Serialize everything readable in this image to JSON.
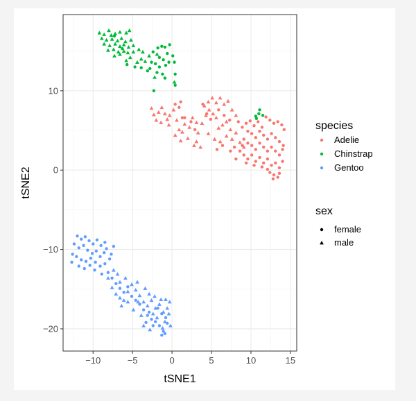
{
  "chart_data": {
    "type": "scatter",
    "xlabel": "tSNE1",
    "ylabel": "tSNE2",
    "xlim": [
      -13.8,
      15.8
    ],
    "ylim": [
      -22.8,
      19.6
    ],
    "xticks": [
      -10,
      -5,
      0,
      5,
      10,
      15
    ],
    "yticks": [
      -20,
      -10,
      0,
      10
    ],
    "xtick_labels": [
      "−10",
      "−5",
      "0",
      "5",
      "10",
      "15"
    ],
    "ytick_labels": [
      "−20",
      "−10",
      "0",
      "10"
    ],
    "grid": true,
    "colors": {
      "Adelie": "#F8766D",
      "Chinstrap": "#00BA38",
      "Gentoo": "#619CFF"
    },
    "legend": {
      "color_title": "species",
      "color_items": [
        "Adelie",
        "Chinstrap",
        "Gentoo"
      ],
      "shape_title": "sex",
      "shape_items": [
        "female",
        "male"
      ]
    },
    "series": [
      {
        "species": "Chinstrap",
        "sex": "male",
        "points": [
          [
            -9.2,
            17.3
          ],
          [
            -8.6,
            17.1
          ],
          [
            -8.0,
            17.6
          ],
          [
            -7.7,
            17.0
          ],
          [
            -7.2,
            17.2
          ],
          [
            -6.6,
            17.4
          ],
          [
            -5.8,
            17.3
          ],
          [
            -5.4,
            17.6
          ],
          [
            -8.9,
            16.6
          ],
          [
            -8.3,
            16.4
          ],
          [
            -7.6,
            16.5
          ],
          [
            -6.9,
            16.3
          ],
          [
            -6.4,
            16.6
          ],
          [
            -5.9,
            16.2
          ],
          [
            -5.2,
            16.4
          ],
          [
            -8.6,
            15.9
          ],
          [
            -7.9,
            15.7
          ],
          [
            -7.2,
            15.9
          ],
          [
            -6.6,
            15.6
          ],
          [
            -6.1,
            15.8
          ],
          [
            -5.5,
            15.5
          ],
          [
            -4.9,
            15.7
          ],
          [
            -8.1,
            15.1
          ],
          [
            -7.4,
            15.2
          ],
          [
            -6.8,
            14.9
          ],
          [
            -6.1,
            15.0
          ],
          [
            -5.6,
            14.8
          ],
          [
            -4.9,
            14.9
          ],
          [
            -4.2,
            15.2
          ],
          [
            -3.7,
            14.9
          ],
          [
            -7.3,
            14.4
          ],
          [
            -6.6,
            14.6
          ],
          [
            -5.3,
            14.2
          ],
          [
            -3.9,
            14.0
          ],
          [
            -5.8,
            13.8
          ],
          [
            -4.4,
            13.6
          ],
          [
            -2.9,
            14.4
          ],
          [
            -3.4,
            13.7
          ],
          [
            -1.9,
            14.6
          ],
          [
            -2.2,
            11.7
          ],
          [
            0.3,
            11.1
          ]
        ]
      },
      {
        "species": "Chinstrap",
        "sex": "female",
        "points": [
          [
            -7.3,
            16.9
          ],
          [
            -6.3,
            15.3
          ],
          [
            -5.7,
            13.3
          ],
          [
            -4.7,
            13.0
          ],
          [
            -3.9,
            12.9
          ],
          [
            -2.6,
            13.6
          ],
          [
            -3.1,
            12.5
          ],
          [
            -2.4,
            14.9
          ],
          [
            -1.8,
            15.4
          ],
          [
            -1.3,
            15.6
          ],
          [
            -0.9,
            15.5
          ],
          [
            -0.3,
            15.8
          ],
          [
            -0.6,
            14.7
          ],
          [
            -1.6,
            14.2
          ],
          [
            -1.1,
            13.9
          ],
          [
            -2.1,
            13.4
          ],
          [
            -1.6,
            13.0
          ],
          [
            -0.8,
            13.2
          ],
          [
            -0.4,
            13.6
          ],
          [
            -2.8,
            12.8
          ],
          [
            -1.9,
            12.3
          ],
          [
            -1.2,
            12.1
          ],
          [
            -0.9,
            11.6
          ],
          [
            0.1,
            14.4
          ],
          [
            0.3,
            13.6
          ],
          [
            0.4,
            12.1
          ],
          [
            0.4,
            10.7
          ],
          [
            -2.3,
            10.0
          ],
          [
            10.6,
            6.8
          ],
          [
            11.1,
            7.6
          ],
          [
            11.5,
            6.9
          ],
          [
            10.7,
            6.5
          ],
          [
            11.0,
            7.1
          ]
        ]
      },
      {
        "species": "Adelie",
        "sex": "male",
        "points": [
          [
            -2.6,
            7.8
          ],
          [
            -2.3,
            7.0
          ],
          [
            -2.0,
            6.3
          ],
          [
            -1.7,
            7.3
          ],
          [
            -1.3,
            7.9
          ],
          [
            -0.9,
            7.1
          ],
          [
            -0.6,
            6.4
          ],
          [
            -0.3,
            6.9
          ],
          [
            0.2,
            7.6
          ],
          [
            -1.4,
            6.0
          ],
          [
            -0.4,
            5.7
          ],
          [
            0.6,
            6.3
          ],
          [
            0.9,
            5.1
          ],
          [
            0.4,
            4.4
          ],
          [
            1.3,
            4.8
          ],
          [
            1.6,
            5.8
          ],
          [
            2.2,
            5.4
          ],
          [
            2.6,
            6.6
          ],
          [
            3.1,
            6.0
          ],
          [
            2.0,
            4.0
          ],
          [
            1.1,
            3.7
          ],
          [
            2.8,
            3.1
          ],
          [
            3.3,
            4.7
          ],
          [
            3.8,
            5.9
          ],
          [
            4.3,
            6.9
          ],
          [
            4.7,
            7.6
          ],
          [
            5.2,
            7.1
          ],
          [
            5.6,
            6.6
          ],
          [
            4.1,
            8.1
          ],
          [
            4.6,
            8.6
          ],
          [
            5.1,
            9.1
          ],
          [
            5.6,
            8.5
          ],
          [
            6.1,
            9.1
          ],
          [
            6.6,
            8.3
          ],
          [
            7.1,
            8.7
          ],
          [
            7.6,
            7.6
          ],
          [
            8.1,
            6.9
          ],
          [
            6.9,
            6.1
          ],
          [
            6.4,
            5.7
          ],
          [
            5.9,
            5.3
          ],
          [
            7.4,
            5.1
          ],
          [
            8.1,
            4.7
          ],
          [
            6.9,
            4.3
          ],
          [
            6.1,
            3.6
          ],
          [
            7.6,
            3.9
          ],
          [
            8.6,
            3.5
          ],
          [
            9.1,
            2.9
          ],
          [
            5.4,
            3.9
          ],
          [
            4.6,
            4.6
          ],
          [
            3.6,
            2.9
          ],
          [
            3.1,
            3.6
          ]
        ]
      },
      {
        "species": "Adelie",
        "sex": "female",
        "points": [
          [
            0.4,
            8.3
          ],
          [
            0.9,
            7.9
          ],
          [
            1.1,
            8.6
          ],
          [
            1.6,
            6.6
          ],
          [
            1.3,
            6.6
          ],
          [
            2.4,
            6.1
          ],
          [
            2.9,
            5.1
          ],
          [
            3.9,
            8.3
          ],
          [
            4.4,
            7.1
          ],
          [
            4.9,
            6.4
          ],
          [
            5.9,
            7.6
          ],
          [
            6.6,
            6.9
          ],
          [
            7.3,
            6.3
          ],
          [
            8.4,
            6.1
          ],
          [
            8.9,
            5.4
          ],
          [
            9.4,
            5.9
          ],
          [
            9.9,
            6.2
          ],
          [
            10.4,
            5.6
          ],
          [
            10.9,
            6.1
          ],
          [
            11.4,
            5.4
          ],
          [
            11.9,
            6.7
          ],
          [
            12.4,
            6.3
          ],
          [
            12.9,
            5.9
          ],
          [
            13.4,
            6.1
          ],
          [
            13.9,
            5.7
          ],
          [
            14.2,
            5.1
          ],
          [
            9.6,
            4.9
          ],
          [
            10.1,
            4.6
          ],
          [
            10.6,
            4.1
          ],
          [
            11.1,
            4.9
          ],
          [
            11.6,
            4.4
          ],
          [
            12.1,
            3.9
          ],
          [
            12.6,
            4.6
          ],
          [
            13.1,
            4.1
          ],
          [
            13.6,
            3.6
          ],
          [
            14.1,
            3.1
          ],
          [
            9.1,
            3.9
          ],
          [
            9.6,
            3.4
          ],
          [
            10.1,
            3.1
          ],
          [
            10.6,
            2.6
          ],
          [
            11.1,
            3.4
          ],
          [
            11.6,
            2.9
          ],
          [
            12.1,
            2.4
          ],
          [
            12.6,
            2.9
          ],
          [
            13.1,
            2.4
          ],
          [
            13.6,
            1.9
          ],
          [
            14.0,
            2.6
          ],
          [
            8.6,
            2.4
          ],
          [
            9.1,
            1.9
          ],
          [
            9.6,
            1.4
          ],
          [
            10.1,
            1.9
          ],
          [
            10.6,
            1.1
          ],
          [
            11.1,
            1.6
          ],
          [
            11.6,
            0.9
          ],
          [
            12.1,
            1.4
          ],
          [
            12.6,
            0.6
          ],
          [
            13.1,
            0.9
          ],
          [
            13.6,
            0.3
          ],
          [
            14.0,
            1.1
          ],
          [
            12.4,
            -0.3
          ],
          [
            12.9,
            -0.6
          ],
          [
            13.4,
            -0.9
          ],
          [
            12.1,
            0.1
          ],
          [
            11.4,
            0.4
          ],
          [
            10.4,
            0.6
          ],
          [
            9.4,
            0.9
          ],
          [
            8.1,
            1.4
          ],
          [
            7.4,
            2.4
          ],
          [
            6.4,
            3.1
          ],
          [
            5.7,
            2.6
          ],
          [
            7.9,
            2.9
          ],
          [
            8.9,
            3.1
          ],
          [
            12.8,
            -1.1
          ],
          [
            13.6,
            -0.4
          ]
        ]
      },
      {
        "species": "Gentoo",
        "sex": "female",
        "points": [
          [
            -12.0,
            -8.3
          ],
          [
            -11.5,
            -8.7
          ],
          [
            -11.0,
            -8.4
          ],
          [
            -10.5,
            -8.9
          ],
          [
            -10.0,
            -9.3
          ],
          [
            -9.5,
            -8.8
          ],
          [
            -9.0,
            -9.5
          ],
          [
            -8.5,
            -9.1
          ],
          [
            -12.4,
            -9.3
          ],
          [
            -11.8,
            -9.8
          ],
          [
            -11.2,
            -9.5
          ],
          [
            -10.7,
            -10.1
          ],
          [
            -10.1,
            -10.5
          ],
          [
            -9.6,
            -10.2
          ],
          [
            -9.1,
            -10.9
          ],
          [
            -8.6,
            -10.4
          ],
          [
            -12.6,
            -10.6
          ],
          [
            -12.1,
            -10.9
          ],
          [
            -11.5,
            -11.3
          ],
          [
            -10.9,
            -11.5
          ],
          [
            -10.3,
            -11.1
          ],
          [
            -9.7,
            -11.6
          ],
          [
            -9.1,
            -12.1
          ],
          [
            -8.5,
            -11.8
          ],
          [
            -12.7,
            -11.6
          ],
          [
            -11.8,
            -12.1
          ],
          [
            -11.1,
            -12.4
          ],
          [
            -10.4,
            -12.0
          ],
          [
            -9.8,
            -12.6
          ],
          [
            -8.9,
            -13.1
          ],
          [
            -8.1,
            -12.9
          ],
          [
            -7.6,
            -13.6
          ],
          [
            -7.1,
            -14.3
          ],
          [
            -6.6,
            -14.9
          ],
          [
            -6.1,
            -15.4
          ],
          [
            -5.6,
            -14.7
          ],
          [
            -5.1,
            -15.9
          ],
          [
            -4.6,
            -16.4
          ],
          [
            -4.1,
            -16.9
          ],
          [
            -3.6,
            -17.6
          ],
          [
            -3.1,
            -18.3
          ],
          [
            -2.6,
            -18.8
          ],
          [
            -2.1,
            -19.1
          ],
          [
            -1.6,
            -19.6
          ],
          [
            -1.1,
            -20.3
          ],
          [
            -1.3,
            -20.8
          ],
          [
            -0.9,
            -20.6
          ],
          [
            -1.8,
            -17.4
          ],
          [
            -1.3,
            -18.1
          ],
          [
            -0.8,
            -18.6
          ],
          [
            -0.6,
            -19.3
          ],
          [
            -2.4,
            -19.6
          ],
          [
            -3.3,
            -19.2
          ],
          [
            -2.9,
            -17.9
          ],
          [
            -7.9,
            -11.2
          ],
          [
            -8.3,
            -9.9
          ],
          [
            -7.7,
            -10.6
          ],
          [
            -7.4,
            -9.6
          ]
        ]
      },
      {
        "species": "Gentoo",
        "sex": "male",
        "points": [
          [
            -8.1,
            -13.6
          ],
          [
            -7.6,
            -14.8
          ],
          [
            -7.1,
            -15.6
          ],
          [
            -6.6,
            -14.1
          ],
          [
            -6.1,
            -16.4
          ],
          [
            -5.6,
            -15.3
          ],
          [
            -5.1,
            -14.4
          ],
          [
            -4.6,
            -15.1
          ],
          [
            -4.1,
            -15.8
          ],
          [
            -3.6,
            -16.6
          ],
          [
            -3.1,
            -17.1
          ],
          [
            -2.6,
            -16.4
          ],
          [
            -2.1,
            -17.4
          ],
          [
            -1.6,
            -16.9
          ],
          [
            -1.1,
            -17.9
          ],
          [
            -0.6,
            -17.4
          ],
          [
            -0.3,
            -16.6
          ],
          [
            -1.4,
            -16.3
          ],
          [
            -0.9,
            -19.1
          ],
          [
            -2.4,
            -18.1
          ],
          [
            -4.9,
            -17.6
          ],
          [
            -5.6,
            -16.6
          ],
          [
            -6.4,
            -17.1
          ],
          [
            -3.9,
            -18.3
          ],
          [
            -4.4,
            -14.1
          ],
          [
            -5.9,
            -13.6
          ],
          [
            -6.9,
            -13.1
          ],
          [
            -7.4,
            -12.6
          ],
          [
            -3.4,
            -14.9
          ],
          [
            -2.9,
            -15.6
          ],
          [
            -2.2,
            -15.9
          ],
          [
            -1.9,
            -18.6
          ],
          [
            -0.4,
            -18.1
          ],
          [
            -1.2,
            -19.9
          ],
          [
            -0.2,
            -19.6
          ],
          [
            -6.6,
            -16.1
          ],
          [
            -4.3,
            -16.6
          ],
          [
            -3.6,
            -19.6
          ],
          [
            -2.8,
            -20.1
          ],
          [
            -0.8,
            -16.3
          ]
        ]
      }
    ]
  }
}
